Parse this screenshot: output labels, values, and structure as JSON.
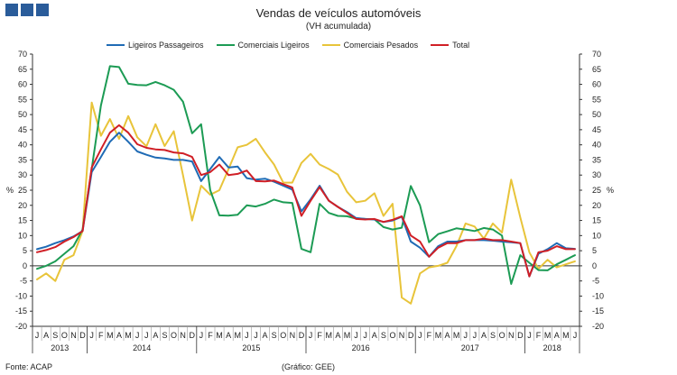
{
  "header": {
    "title": "Vendas de veículos automóveis",
    "subtitle": "(VH acumulada)"
  },
  "footer": {
    "source": "Fonte: ACAP",
    "graph_note": "(Gráfico: GEE)"
  },
  "colors": {
    "ligeiros_passageiros": "#1f6bb5",
    "comerciais_ligeiros": "#1c9b54",
    "comerciais_pesados": "#e8c43a",
    "total": "#d01f26",
    "logo": "#2a5c9a"
  },
  "chart_data": {
    "type": "line",
    "title": "Vendas de veículos automóveis",
    "subtitle": "(VH acumulada)",
    "ylabel_left": "%",
    "ylabel_right": "%",
    "ylim": [
      -20,
      70
    ],
    "yticks": [
      -20,
      -15,
      -10,
      -5,
      0,
      5,
      10,
      15,
      20,
      25,
      30,
      35,
      40,
      45,
      50,
      55,
      60,
      65,
      70
    ],
    "months": [
      "J",
      "A",
      "S",
      "O",
      "N",
      "D",
      "J",
      "F",
      "M",
      "A",
      "M",
      "J",
      "J",
      "A",
      "S",
      "O",
      "N",
      "D",
      "J",
      "F",
      "M",
      "A",
      "M",
      "J",
      "J",
      "A",
      "S",
      "O",
      "N",
      "D",
      "J",
      "F",
      "M",
      "A",
      "M",
      "J",
      "J",
      "A",
      "S",
      "O",
      "N",
      "D",
      "J",
      "F",
      "M",
      "A",
      "M",
      "J",
      "J",
      "A",
      "S",
      "O",
      "N",
      "D",
      "J",
      "F",
      "M",
      "A",
      "M",
      "J"
    ],
    "years": [
      {
        "label": "2013",
        "start": 0,
        "count": 6
      },
      {
        "label": "2014",
        "start": 6,
        "count": 12
      },
      {
        "label": "2015",
        "start": 18,
        "count": 12
      },
      {
        "label": "2016",
        "start": 30,
        "count": 12
      },
      {
        "label": "2017",
        "start": 42,
        "count": 12
      },
      {
        "label": "2018",
        "start": 54,
        "count": 6
      }
    ],
    "legend": [
      "Ligeiros Passageiros",
      "Comerciais Ligeiros",
      "Comerciais Pesados",
      "Total"
    ],
    "series": [
      {
        "name": "Ligeiros Passageiros",
        "color": "#1f6bb5",
        "values": [
          5.5,
          6.3,
          7.5,
          8.5,
          9.7,
          11.5,
          31,
          36,
          41,
          44,
          41,
          37.8,
          36.7,
          35.8,
          35.5,
          35,
          35,
          34.5,
          28,
          32,
          36,
          32.5,
          32.8,
          29,
          28.5,
          28.8,
          27.8,
          26.5,
          25.2,
          18,
          22,
          26.5,
          21.5,
          19.5,
          17.8,
          15.8,
          15.5,
          15.3,
          14.5,
          15,
          16.2,
          8,
          6,
          3,
          6.5,
          8,
          8,
          8.5,
          8.5,
          8.5,
          8.3,
          8,
          7.8,
          7.5,
          -3.5,
          4,
          5.5,
          7.5,
          5.8,
          5.6
        ]
      },
      {
        "name": "Comerciais Ligeiros",
        "color": "#1c9b54",
        "values": [
          -1,
          0,
          1.5,
          4,
          6.5,
          12,
          32,
          53,
          66,
          65.7,
          60.2,
          59.8,
          59.7,
          60.8,
          59.7,
          58.2,
          54.3,
          43.8,
          46.8,
          25,
          16.7,
          16.6,
          16.9,
          20,
          19.6,
          20.5,
          21.9,
          21,
          20.8,
          5.6,
          4.5,
          20.5,
          17.5,
          16.5,
          16.4,
          15.6,
          15.5,
          15.4,
          12.8,
          12,
          12.6,
          26.4,
          20,
          7.8,
          10.5,
          11.4,
          12.4,
          12,
          11.5,
          12.5,
          12,
          10,
          -6,
          3.5,
          1,
          -1.4,
          -1.5,
          0.5,
          2,
          3.5
        ]
      },
      {
        "name": "Comerciais Pesados",
        "color": "#e8c43a",
        "values": [
          -4.5,
          -2.5,
          -5,
          2,
          3.5,
          11.5,
          54,
          43,
          48.5,
          42,
          49.5,
          42.5,
          39.5,
          46.8,
          39.6,
          44.5,
          30,
          15,
          26.5,
          23.5,
          25,
          32,
          39.2,
          40,
          42,
          37.5,
          33.5,
          27.5,
          27.5,
          34,
          37,
          33.5,
          32,
          30.2,
          24.5,
          21,
          21.5,
          24,
          16.5,
          20.5,
          -10.5,
          -12.5,
          -2.5,
          -0.5,
          0,
          1,
          6.5,
          14,
          13,
          9,
          14,
          11,
          28.5,
          16,
          4.5,
          -1,
          2,
          -0.5,
          0.5,
          1.5
        ]
      },
      {
        "name": "Total",
        "color": "#d01f26",
        "values": [
          4.5,
          5.2,
          6.2,
          8,
          9.5,
          11.5,
          32.5,
          38.5,
          44,
          46.5,
          44,
          40.2,
          39,
          38.5,
          38.3,
          37.5,
          37.2,
          36,
          30,
          31,
          33.5,
          30,
          30.4,
          31.5,
          28,
          27.9,
          28.2,
          27,
          25.9,
          16.5,
          21.5,
          26,
          21.5,
          19.5,
          17.5,
          15.5,
          15.3,
          15.5,
          14.5,
          15.2,
          16.4,
          10,
          8,
          3,
          6,
          7.5,
          7.5,
          8.5,
          8.5,
          9,
          8.5,
          8.5,
          8,
          7.5,
          -3.5,
          4.5,
          5,
          6.5,
          5.5,
          5.5
        ]
      }
    ]
  }
}
